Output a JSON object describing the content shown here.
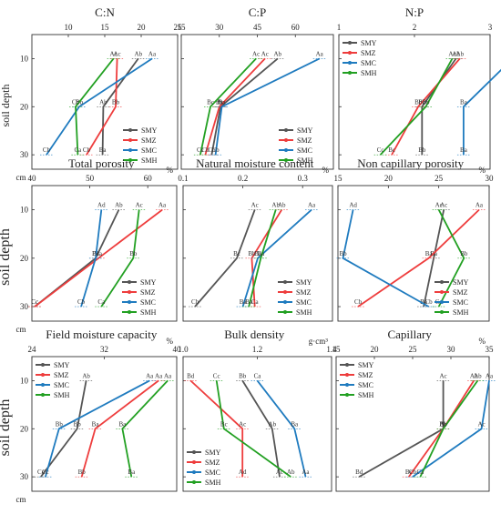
{
  "colors": {
    "SMY": "#555555",
    "SMZ": "#ee3d3d",
    "SMC": "#1f7bbf",
    "SMH": "#22a022"
  },
  "legend": [
    "SMY",
    "SMZ",
    "SMC",
    "SMH"
  ],
  "depth_label": "soil depth",
  "cm_label": "cm",
  "y_ticks": [
    "10",
    "20",
    "30"
  ],
  "chart_data": [
    {
      "type": "line",
      "title": "C:N",
      "xlim": [
        5,
        25
      ],
      "xticks": [
        10,
        15,
        20,
        25
      ],
      "xticklabels": [
        "10",
        "15",
        "20",
        "25"
      ],
      "unit": "",
      "depth": [
        10,
        20,
        30
      ],
      "series": [
        {
          "name": "SMY",
          "x": [
            19.6,
            14.8,
            14.7
          ],
          "labels": [
            "Ab",
            "Ab",
            "Ba"
          ]
        },
        {
          "name": "SMZ",
          "x": [
            16.7,
            16.5,
            12.5
          ],
          "labels": [
            "Ac",
            "Bb",
            "Cb"
          ]
        },
        {
          "name": "SMC",
          "x": [
            21.5,
            11.5,
            7.0
          ],
          "labels": [
            "Aa",
            "Bb",
            "Cb"
          ]
        },
        {
          "name": "SMH",
          "x": [
            16.2,
            11.0,
            11.3
          ],
          "labels": [
            "Ac",
            "Cb",
            "Ca"
          ]
        }
      ],
      "legend_pos": "bottom-right"
    },
    {
      "type": "line",
      "title": "C:P",
      "xlim": [
        15,
        75
      ],
      "xticks": [
        15,
        30,
        45,
        60
      ],
      "xticklabels": [
        "15",
        "30",
        "45",
        "60"
      ],
      "unit": "",
      "depth": [
        10,
        20,
        30
      ],
      "series": [
        {
          "name": "SMY",
          "x": [
            53.0,
            30.5,
            27.0
          ],
          "labels": [
            "Ab",
            "Ba",
            "Cb"
          ]
        },
        {
          "name": "SMZ",
          "x": [
            48.0,
            30.0,
            24.5
          ],
          "labels": [
            "Ac",
            "Ba",
            "Cb"
          ]
        },
        {
          "name": "SMC",
          "x": [
            69.5,
            31.0,
            28.5
          ],
          "labels": [
            "Aa",
            "Ba",
            "Cb"
          ]
        },
        {
          "name": "SMH",
          "x": [
            44.5,
            26.5,
            22.5
          ],
          "labels": [
            "Ac",
            "Bc",
            "Cc"
          ]
        }
      ],
      "legend_pos": "bottom-right"
    },
    {
      "type": "line",
      "title": "N:P",
      "xlim": [
        1,
        3
      ],
      "xticks": [
        1,
        2,
        3
      ],
      "xticklabels": [
        "1",
        "2",
        "3"
      ],
      "unit": "",
      "depth": [
        10,
        20,
        30
      ],
      "series": [
        {
          "name": "SMY",
          "x": [
            2.55,
            2.1,
            2.1
          ],
          "labels": [
            "Ab",
            "Bb",
            "Bb"
          ]
        },
        {
          "name": "SMZ",
          "x": [
            2.6,
            2.05,
            1.7
          ],
          "labels": [
            "Ab",
            "Bb",
            "Bc"
          ]
        },
        {
          "name": "SMC",
          "x": [
            3.3,
            2.65,
            2.65
          ],
          "labels": [
            "Aa",
            "Ba",
            "Ba"
          ]
        },
        {
          "name": "SMH",
          "x": [
            2.5,
            2.15,
            1.55
          ],
          "labels": [
            "Ac",
            "Bb",
            "Cc"
          ]
        }
      ],
      "legend_pos": "top-left"
    },
    {
      "type": "line",
      "title": "Total porosity",
      "xlim": [
        40,
        65
      ],
      "xticks": [
        40,
        50,
        60
      ],
      "xticklabels": [
        "40",
        "50",
        "60"
      ],
      "unit": "%",
      "depth": [
        10,
        20,
        30
      ],
      "series": [
        {
          "name": "SMY",
          "x": [
            55.0,
            51.0,
            40.5
          ],
          "labels": [
            "Ab",
            "Bc",
            "Cc"
          ]
        },
        {
          "name": "SMZ",
          "x": [
            62.5,
            51.5,
            40.5
          ],
          "labels": [
            "Aa",
            "Ba",
            "Cc"
          ]
        },
        {
          "name": "SMC",
          "x": [
            52.0,
            51.0,
            48.5
          ],
          "labels": [
            "Ad",
            "Bc",
            "Cb"
          ]
        },
        {
          "name": "SMH",
          "x": [
            58.5,
            57.5,
            52.0
          ],
          "labels": [
            "Ac",
            "Bb",
            "Ca"
          ]
        }
      ],
      "legend_pos": "bottom-right"
    },
    {
      "type": "line",
      "title": "Natural moisture content",
      "xlim": [
        0.1,
        0.35
      ],
      "xticks": [
        0.1,
        0.2,
        0.3
      ],
      "xticklabels": [
        "0.1",
        "0.2",
        "0.3"
      ],
      "unit": "%",
      "depth": [
        10,
        20,
        30
      ],
      "series": [
        {
          "name": "SMY",
          "x": [
            0.22,
            0.19,
            0.12
          ],
          "labels": [
            "Ac",
            "Bc",
            "Cb"
          ]
        },
        {
          "name": "SMZ",
          "x": [
            0.265,
            0.215,
            0.22
          ],
          "labels": [
            "Ab",
            "Bb",
            "Ca"
          ]
        },
        {
          "name": "SMC",
          "x": [
            0.315,
            0.225,
            0.2
          ],
          "labels": [
            "Aa",
            "Ba",
            "Ba"
          ]
        },
        {
          "name": "SMH",
          "x": [
            0.255,
            0.23,
            0.21
          ],
          "labels": [
            "Ab",
            "Ba",
            "Ba"
          ]
        }
      ],
      "legend_pos": "bottom-right"
    },
    {
      "type": "line",
      "title": "Non capillary porosity",
      "xlim": [
        15,
        30
      ],
      "xticks": [
        15,
        20,
        25,
        30
      ],
      "xticklabels": [
        "15",
        "20",
        "25",
        "30"
      ],
      "unit": "%",
      "depth": [
        10,
        20,
        30
      ],
      "series": [
        {
          "name": "SMY",
          "x": [
            25.5,
            24.5,
            23.5
          ],
          "labels": [
            "Ac",
            "Ba",
            "Ba"
          ]
        },
        {
          "name": "SMZ",
          "x": [
            29.0,
            24.0,
            17.0
          ],
          "labels": [
            "Aa",
            "Ba",
            "Cb"
          ]
        },
        {
          "name": "SMC",
          "x": [
            16.5,
            15.5,
            24.0
          ],
          "labels": [
            "Ad",
            "Bb",
            "Cb"
          ]
        },
        {
          "name": "SMH",
          "x": [
            25.0,
            27.5,
            25.0
          ],
          "labels": [
            "Ac",
            "Bb",
            "Ca"
          ]
        }
      ],
      "legend_pos": "bottom-right"
    },
    {
      "type": "line",
      "title": "Field moisture capacity",
      "xlim": [
        24,
        40
      ],
      "xticks": [
        24,
        32,
        40
      ],
      "xticklabels": [
        "24",
        "32",
        "40"
      ],
      "unit": "%",
      "depth": [
        10,
        20,
        30
      ],
      "series": [
        {
          "name": "SMY",
          "x": [
            30.0,
            29.0,
            25.0
          ],
          "labels": [
            "Ab",
            "Bb",
            "Cc"
          ]
        },
        {
          "name": "SMZ",
          "x": [
            38.0,
            31.0,
            29.5
          ],
          "labels": [
            "Aa",
            "Ba",
            "Bb"
          ]
        },
        {
          "name": "SMC",
          "x": [
            37.0,
            27.0,
            25.5
          ],
          "labels": [
            "Aa",
            "Bb",
            "Cc"
          ]
        },
        {
          "name": "SMH",
          "x": [
            39.0,
            34.0,
            35.0
          ],
          "labels": [
            "Aa",
            "Ba",
            "Ba"
          ]
        }
      ],
      "legend_pos": "top-left"
    },
    {
      "type": "line",
      "title": "Bulk density",
      "xlim": [
        1.0,
        1.4
      ],
      "xticks": [
        1.0,
        1.2,
        1.4
      ],
      "xticklabels": [
        "1.0",
        "1.2",
        "1.4"
      ],
      "unit": "g·cm³",
      "depth": [
        10,
        20,
        30
      ],
      "series": [
        {
          "name": "SMY",
          "x": [
            1.16,
            1.24,
            1.26
          ],
          "labels": [
            "Bb",
            "Ab",
            "Ac"
          ]
        },
        {
          "name": "SMZ",
          "x": [
            1.02,
            1.16,
            1.16
          ],
          "labels": [
            "Bd",
            "Ac",
            "Ad"
          ]
        },
        {
          "name": "SMC",
          "x": [
            1.2,
            1.3,
            1.33
          ],
          "labels": [
            "Ca",
            "Ba",
            "Aa"
          ]
        },
        {
          "name": "SMH",
          "x": [
            1.09,
            1.11,
            1.29
          ],
          "labels": [
            "Cc",
            "Bc",
            "Ab"
          ]
        }
      ],
      "legend_pos": "bottom-left"
    },
    {
      "type": "line",
      "title": "Capillary",
      "xlim": [
        15,
        35
      ],
      "xticks": [
        15,
        20,
        25,
        30,
        35
      ],
      "xticklabels": [
        "15",
        "20",
        "25",
        "30",
        "35"
      ],
      "unit": "%",
      "depth": [
        10,
        20,
        30
      ],
      "series": [
        {
          "name": "SMY",
          "x": [
            29.0,
            29.0,
            18.0
          ],
          "labels": [
            "Ac",
            "Ab",
            "Bd"
          ]
        },
        {
          "name": "SMZ",
          "x": [
            33.0,
            29.0,
            24.5
          ],
          "labels": [
            "Ab",
            "Bb",
            "Bc"
          ]
        },
        {
          "name": "SMC",
          "x": [
            35.0,
            34.0,
            25.0
          ],
          "labels": [
            "Aa",
            "Ac",
            "Cb"
          ]
        },
        {
          "name": "SMH",
          "x": [
            33.5,
            29.0,
            26.0
          ],
          "labels": [
            "Ab",
            "Bb",
            "Ca"
          ]
        }
      ],
      "legend_pos": "top-left"
    }
  ]
}
